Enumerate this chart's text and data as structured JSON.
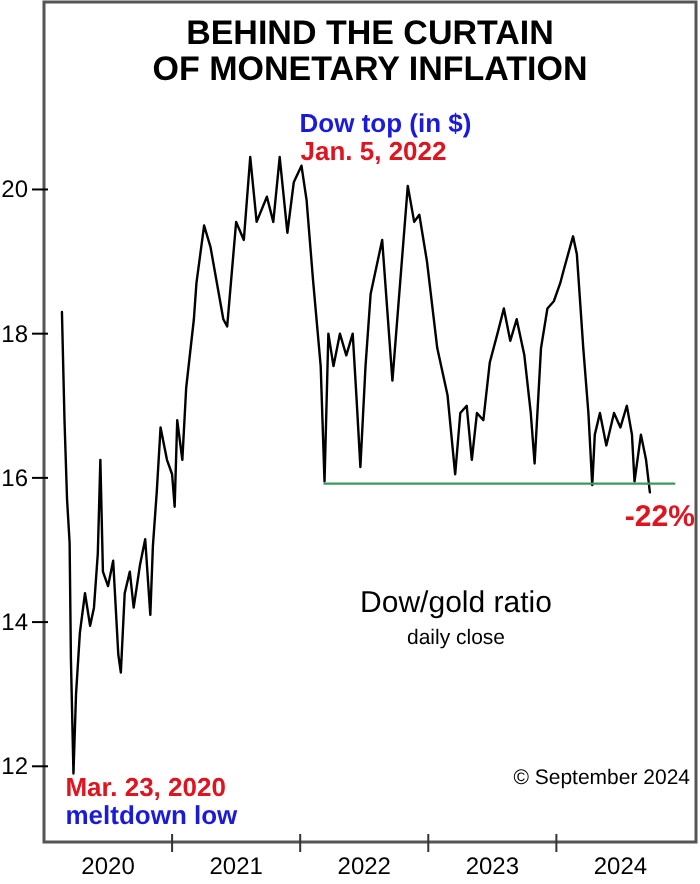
{
  "chart_data": {
    "type": "line",
    "title": "BEHIND THE CURTAIN\nOF MONETARY INFLATION",
    "xlim": [
      2020.0,
      2025.09
    ],
    "ylim": [
      10.95,
      22.6
    ],
    "xticks": [
      {
        "value": 2020.5,
        "label": "2020"
      },
      {
        "value": 2021,
        "label": null
      },
      {
        "value": 2021.5,
        "label": "2021"
      },
      {
        "value": 2022,
        "label": null
      },
      {
        "value": 2022.5,
        "label": "2022"
      },
      {
        "value": 2023,
        "label": null
      },
      {
        "value": 2023.5,
        "label": "2023"
      },
      {
        "value": 2024,
        "label": null
      },
      {
        "value": 2024.5,
        "label": "2024"
      }
    ],
    "yticks": [
      12,
      14,
      16,
      18,
      20
    ],
    "grid": false,
    "series": [
      {
        "color": "#000000",
        "x": [
          2020.14,
          2020.16,
          2020.18,
          2020.2,
          2020.21,
          2020.23,
          2020.25,
          2020.28,
          2020.32,
          2020.36,
          2020.39,
          2020.42,
          2020.44,
          2020.46,
          2020.5,
          2020.54,
          2020.58,
          2020.6,
          2020.63,
          2020.67,
          2020.7,
          2020.75,
          2020.79,
          2020.83,
          2020.85,
          2020.88,
          2020.91,
          2020.96,
          2021.0,
          2021.02,
          2021.04,
          2021.08,
          2021.11,
          2021.17,
          2021.19,
          2021.25,
          2021.3,
          2021.33,
          2021.4,
          2021.43,
          2021.5,
          2021.56,
          2021.61,
          2021.66,
          2021.74,
          2021.79,
          2021.84,
          2021.9,
          2021.95,
          2022.01,
          2022.05,
          2022.1,
          2022.16,
          2022.19,
          2022.22,
          2022.26,
          2022.31,
          2022.36,
          2022.41,
          2022.44,
          2022.47,
          2022.51,
          2022.55,
          2022.64,
          2022.72,
          2022.84,
          2022.89,
          2022.93,
          2022.99,
          2023.07,
          2023.15,
          2023.21,
          2023.25,
          2023.3,
          2023.34,
          2023.38,
          2023.43,
          2023.48,
          2023.54,
          2023.59,
          2023.64,
          2023.69,
          2023.75,
          2023.8,
          2023.83,
          2023.88,
          2023.93,
          2023.98,
          2024.03,
          2024.06,
          2024.13,
          2024.16,
          2024.21,
          2024.25,
          2024.28,
          2024.3,
          2024.34,
          2024.39,
          2024.45,
          2024.5,
          2024.55,
          2024.59,
          2024.61,
          2024.66,
          2024.7,
          2024.73
        ],
        "values": [
          18.3,
          16.8,
          15.7,
          15.1,
          13.5,
          11.9,
          13.0,
          13.85,
          14.4,
          13.95,
          14.2,
          14.95,
          16.25,
          14.7,
          14.5,
          14.85,
          13.55,
          13.3,
          14.4,
          14.7,
          14.2,
          14.8,
          15.15,
          14.1,
          15.05,
          15.8,
          16.7,
          16.25,
          16.05,
          15.6,
          16.8,
          16.25,
          17.25,
          18.2,
          18.7,
          19.5,
          19.2,
          18.9,
          18.2,
          18.1,
          19.55,
          19.3,
          20.45,
          19.55,
          19.9,
          19.55,
          20.45,
          19.4,
          20.1,
          20.33,
          19.85,
          18.75,
          17.55,
          15.95,
          18.0,
          17.55,
          18.0,
          17.7,
          18.0,
          17.1,
          16.15,
          17.55,
          18.55,
          19.3,
          17.35,
          20.05,
          19.55,
          19.65,
          19.0,
          17.8,
          17.15,
          16.05,
          16.9,
          17.0,
          16.25,
          16.9,
          16.8,
          17.6,
          18.0,
          18.35,
          17.9,
          18.2,
          17.7,
          16.9,
          16.2,
          17.8,
          18.35,
          18.45,
          18.7,
          18.9,
          19.35,
          19.1,
          17.8,
          16.9,
          15.9,
          16.6,
          16.9,
          16.45,
          16.9,
          16.7,
          17.0,
          16.6,
          15.95,
          16.6,
          16.25,
          15.8
        ]
      },
      {
        "color": "#3a9a5a",
        "x": [
          2022.19,
          2024.92
        ],
        "values": [
          15.92,
          15.92
        ]
      }
    ],
    "annotations": [
      {
        "text": "Dow top (in $)",
        "x": 2022.01,
        "y": 20.33
      },
      {
        "text": "Jan. 5, 2022",
        "x": 2022.01,
        "y": 20.33
      },
      {
        "text": "Mar. 23, 2020",
        "x": 2020.23,
        "y": 11.9
      },
      {
        "text": "meltdown low",
        "x": 2020.23,
        "y": 11.9
      },
      {
        "text": "-22%",
        "x": 2024.73,
        "y": 15.8
      },
      "Dow/gold ratio",
      "daily close",
      "© September 2024"
    ]
  }
}
